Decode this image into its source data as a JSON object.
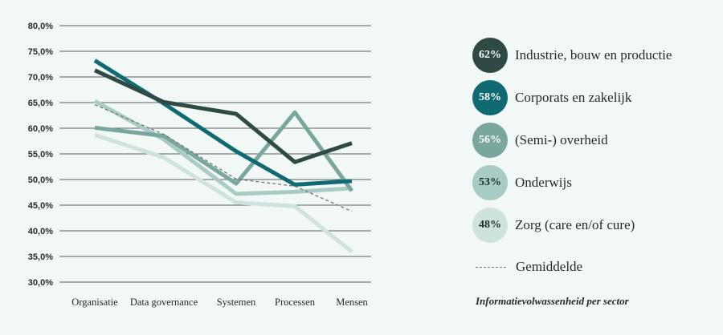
{
  "chart_data": {
    "type": "line",
    "title": "Informatievolwassenheid per sector",
    "categories": [
      "Organisatie",
      "Data governance",
      "Systemen",
      "Processen",
      "Mensen"
    ],
    "ylim": [
      30,
      80
    ],
    "yticks": [
      "30,0%",
      "35,0%",
      "40,0%",
      "45,0%",
      "50,0%",
      "55,0%",
      "60,0%",
      "65,0%",
      "70,0%",
      "75,0%",
      "80,0%"
    ],
    "grid": true,
    "legend_position": "right",
    "series": [
      {
        "name": "Industrie, bouw en productie",
        "badge": "62%",
        "color": "#2f4a45",
        "text_color": "#ffffff",
        "values": [
          71.3,
          65.1,
          62.8,
          53.4,
          57.1
        ]
      },
      {
        "name": "Corporats en zakelijk",
        "badge": "58%",
        "color": "#0f6b71",
        "text_color": "#ffffff",
        "values": [
          73.2,
          64.8,
          55.5,
          49.0,
          49.7
        ]
      },
      {
        "name": "(Semi-) overheid",
        "badge": "56%",
        "color": "#79a7a0",
        "text_color": "#ffffff",
        "values": [
          60.1,
          58.5,
          49.2,
          63.1,
          47.8
        ]
      },
      {
        "name": "Onderwijs",
        "badge": "53%",
        "color": "#a9cbc5",
        "text_color": "#1e2b2a",
        "values": [
          65.3,
          57.8,
          47.2,
          47.6,
          48.3
        ]
      },
      {
        "name": "Zorg (care en/of cure)",
        "badge": "48%",
        "color": "#cfe3de",
        "text_color": "#1e2b2a",
        "values": [
          58.7,
          54.3,
          45.5,
          44.8,
          35.9
        ]
      }
    ],
    "average": {
      "name": "Gemiddelde",
      "color": "#777777",
      "values": [
        64.6,
        58.8,
        50.1,
        48.7,
        43.8
      ]
    }
  }
}
